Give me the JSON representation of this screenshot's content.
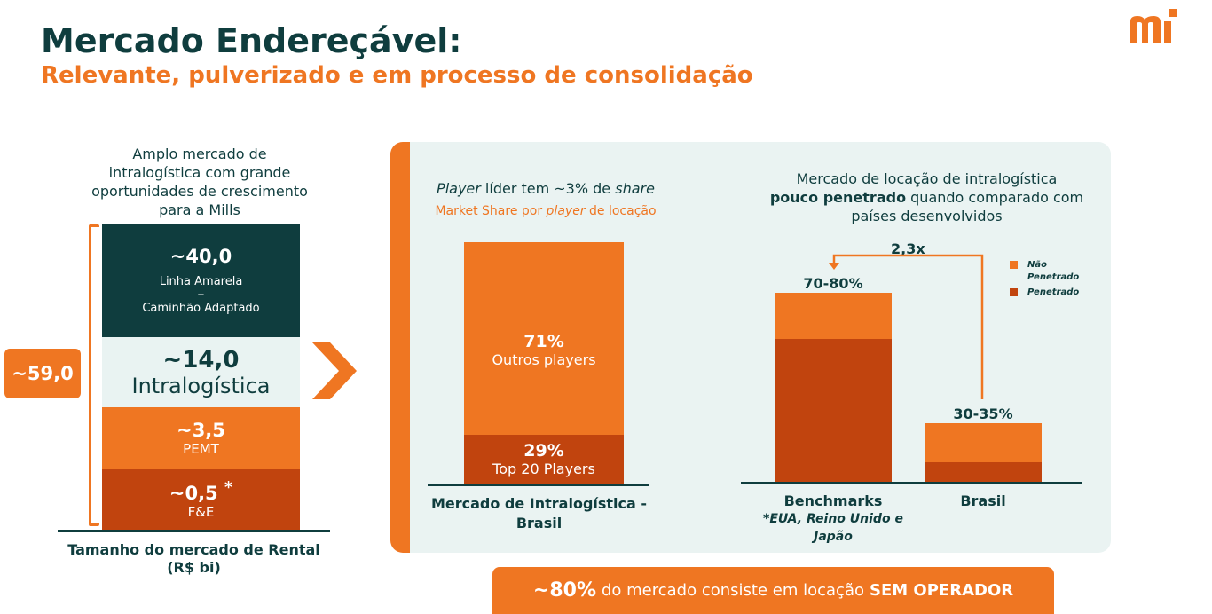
{
  "header": {
    "title": "Mercado Endereçável:",
    "subtitle": "Relevante, pulverizado e em processo de consolidação"
  },
  "colors": {
    "orange": "#ef7622",
    "dark_orange": "#c1440e",
    "dark_teal": "#0f3d3e",
    "light_teal": "#e9f3f2"
  },
  "left_chart": {
    "caption": "Amplo mercado de intralogística com grande oportunidades de crescimento para a Mills",
    "total": "~59,0",
    "segments": [
      {
        "value": "~40,0",
        "label_1": "Linha Amarela",
        "label_2": "+",
        "label_3": "Caminhão Adaptado"
      },
      {
        "value": "~14,0",
        "label": "Intralogística"
      },
      {
        "value": "~3,5",
        "label": "PEMT"
      },
      {
        "value": "~0,5",
        "marker": "*",
        "label": "F&E"
      }
    ],
    "footer_1": "Tamanho do mercado de Rental",
    "footer_2": "(R$ bi)"
  },
  "middle_chart": {
    "title_part1": "Player",
    "title_part2": " líder tem ~3% de ",
    "title_part3": "share",
    "subtitle_part1": "Market Share por ",
    "subtitle_part2": "player",
    "subtitle_part3": " de locação",
    "top_value": "71%",
    "top_label": "Outros players",
    "bottom_value": "29%",
    "bottom_label": "Top 20 Players",
    "footer": "Mercado de Intralogística - Brasil"
  },
  "right_chart": {
    "caption_line1": "Mercado de locação de intralogística",
    "caption_bold": "pouco penetrado",
    "caption_rest": " quando comparado com países desenvolvidos",
    "multiplier": "2,3x",
    "legend": [
      {
        "label": "Não Penetrado",
        "color": "#ef7622"
      },
      {
        "label": "Penetrado",
        "color": "#c1440e"
      }
    ],
    "bars": [
      {
        "category": "Benchmarks",
        "value_label": "70-80%",
        "note": "*EUA, Reino Unido e Japão"
      },
      {
        "category": "Brasil",
        "value_label": "30-35%"
      }
    ]
  },
  "banner": {
    "pct": "~80%",
    "text": "do mercado consiste em locação",
    "emphasis": "SEM OPERADOR"
  }
}
